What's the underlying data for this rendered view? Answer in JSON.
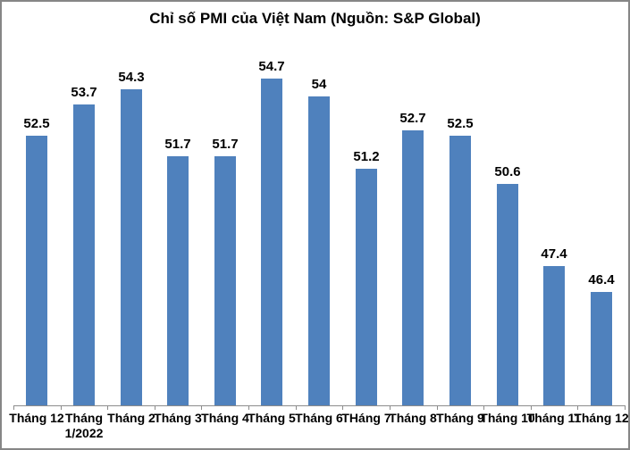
{
  "window": {
    "background_color": "#FFFFFF",
    "border_color": "#868686"
  },
  "chart_data": {
    "type": "bar",
    "title": "Chỉ số PMI của Việt Nam (Nguồn: S&P Global)",
    "categories": [
      "Tháng 12",
      "Tháng 1/2022",
      "Tháng 2",
      "Tháng 3",
      "Tháng 4",
      "Tháng 5",
      "Tháng 6",
      "THáng 7",
      "Tháng 8",
      "Tháng 9",
      "Tháng 10",
      "Tháng 11",
      "Tháng 12"
    ],
    "xtick_display_lines": [
      [
        "Tháng 12"
      ],
      [
        "Tháng",
        "1/2022"
      ],
      [
        "Tháng 2"
      ],
      [
        "Tháng 3"
      ],
      [
        "Tháng 4"
      ],
      [
        "Tháng 5"
      ],
      [
        "Tháng 6"
      ],
      [
        "THáng 7"
      ],
      [
        "Tháng 8"
      ],
      [
        "Tháng 9"
      ],
      [
        "Tháng 10"
      ],
      [
        "Tháng 11"
      ],
      [
        "Tháng 12"
      ]
    ],
    "values": [
      52.5,
      53.7,
      54.3,
      51.7,
      51.7,
      54.7,
      54,
      51.2,
      52.7,
      52.5,
      50.6,
      47.4,
      46.4
    ],
    "value_labels": [
      "52.5",
      "53.7",
      "54.3",
      "51.7",
      "51.7",
      "54.7",
      "54",
      "51.2",
      "52.7",
      "52.5",
      "50.6",
      "47.4",
      "46.4"
    ],
    "bar_color": "#4F81BD",
    "axis_color": "#8C8C8C",
    "text_color": "#000000",
    "xlabel": "",
    "ylabel": "",
    "ylim": [
      42,
      56
    ],
    "gridlines": false,
    "legend": "none",
    "data_labels": true
  }
}
